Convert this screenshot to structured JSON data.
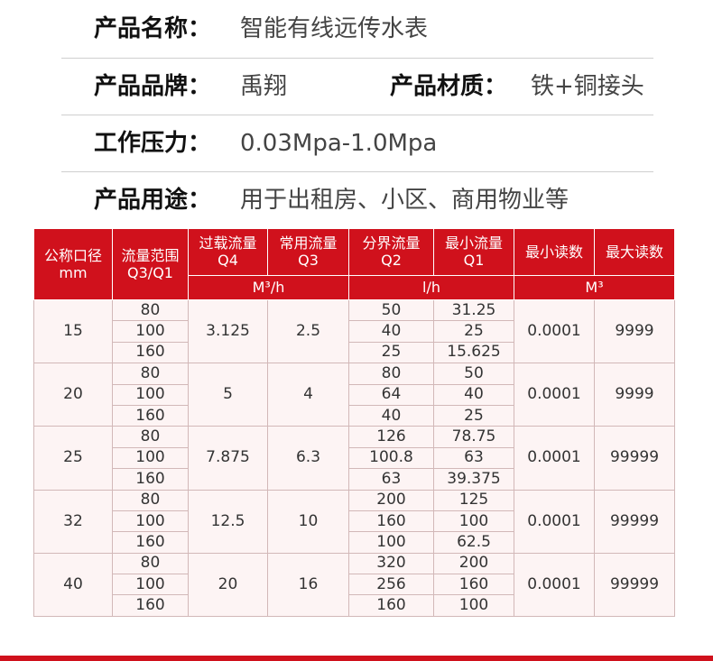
{
  "info": {
    "name": {
      "label": "产品名称：",
      "value": "智能有线远传水表"
    },
    "brand": {
      "label": "产品品牌：",
      "value": "禹翔"
    },
    "material": {
      "label": "产品材质：",
      "value": "铁+铜接头"
    },
    "pressure": {
      "label": "工作压力：",
      "value": "0.03Mpa-1.0Mpa"
    },
    "usage": {
      "label": "产品用途：",
      "value": "用于出租房、小区、商用物业等"
    }
  },
  "table": {
    "headers": {
      "dn": [
        "公称口径",
        "mm"
      ],
      "ratio": [
        "流量范围",
        "Q3/Q1"
      ],
      "q4": [
        "过载流量",
        "Q4"
      ],
      "q3": [
        "常用流量",
        "Q3"
      ],
      "q2": [
        "分界流量",
        "Q2"
      ],
      "q1": [
        "最小流量",
        "Q1"
      ],
      "min_reading": "最小读数",
      "max_reading": "最大读数"
    },
    "units": {
      "m3h": "M³/h",
      "lh": "l/h",
      "m3": "M³"
    },
    "groups": [
      {
        "dn": "15",
        "q4": "3.125",
        "q3": "2.5",
        "min": "0.0001",
        "max": "9999",
        "rows": [
          {
            "ratio": "80",
            "q2": "50",
            "q1": "31.25"
          },
          {
            "ratio": "100",
            "q2": "40",
            "q1": "25"
          },
          {
            "ratio": "160",
            "q2": "25",
            "q1": "15.625"
          }
        ]
      },
      {
        "dn": "20",
        "q4": "5",
        "q3": "4",
        "min": "0.0001",
        "max": "9999",
        "rows": [
          {
            "ratio": "80",
            "q2": "80",
            "q1": "50"
          },
          {
            "ratio": "100",
            "q2": "64",
            "q1": "40"
          },
          {
            "ratio": "160",
            "q2": "40",
            "q1": "25"
          }
        ]
      },
      {
        "dn": "25",
        "q4": "7.875",
        "q3": "6.3",
        "min": "0.0001",
        "max": "99999",
        "rows": [
          {
            "ratio": "80",
            "q2": "126",
            "q1": "78.75"
          },
          {
            "ratio": "100",
            "q2": "100.8",
            "q1": "63"
          },
          {
            "ratio": "160",
            "q2": "63",
            "q1": "39.375"
          }
        ]
      },
      {
        "dn": "32",
        "q4": "12.5",
        "q3": "10",
        "min": "0.0001",
        "max": "99999",
        "rows": [
          {
            "ratio": "80",
            "q2": "200",
            "q1": "125"
          },
          {
            "ratio": "100",
            "q2": "160",
            "q1": "100"
          },
          {
            "ratio": "160",
            "q2": "100",
            "q1": "62.5"
          }
        ]
      },
      {
        "dn": "40",
        "q4": "20",
        "q3": "16",
        "min": "0.0001",
        "max": "99999",
        "rows": [
          {
            "ratio": "80",
            "q2": "320",
            "q1": "200"
          },
          {
            "ratio": "100",
            "q2": "256",
            "q1": "160"
          },
          {
            "ratio": "160",
            "q2": "160",
            "q1": "100"
          }
        ]
      }
    ]
  }
}
